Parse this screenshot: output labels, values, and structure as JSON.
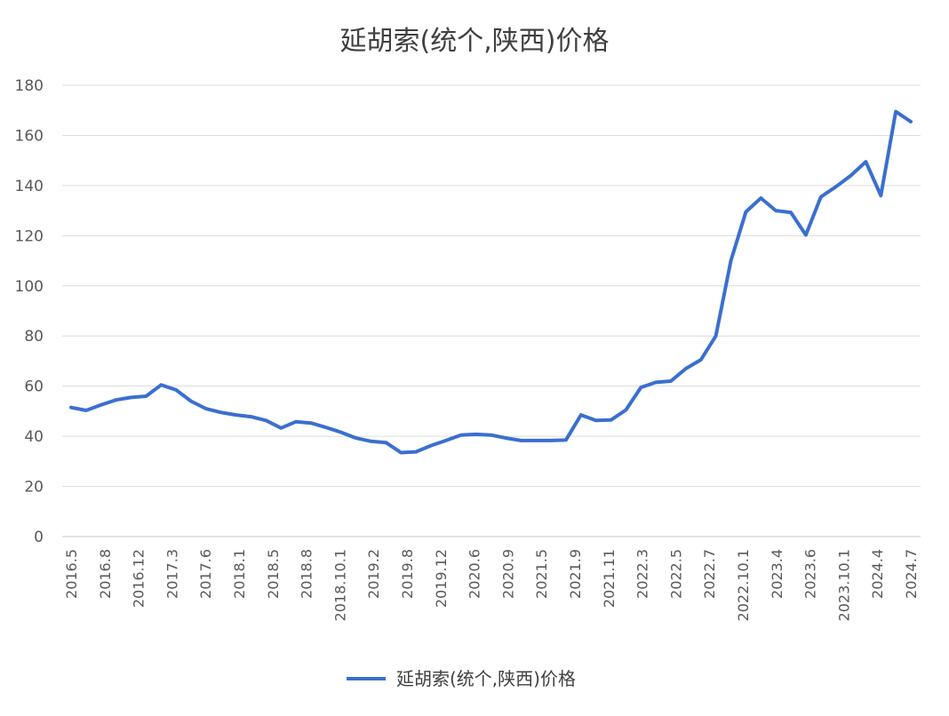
{
  "chart_data": {
    "type": "line",
    "title": "延胡索(统个,陕西)价格",
    "xlabel": "",
    "ylabel": "",
    "ylim": [
      0,
      180
    ],
    "yticks": [
      0,
      20,
      40,
      60,
      80,
      100,
      120,
      140,
      160,
      180
    ],
    "x_tick_labels": [
      "2016.5",
      "2016.8",
      "2016.12",
      "2017.3",
      "2017.6",
      "2018.1",
      "2018.5",
      "2018.8",
      "2018.10.1",
      "2019.2",
      "2019.8",
      "2019.12",
      "2020.6",
      "2020.9",
      "2021.5",
      "2021.9",
      "2021.11",
      "2022.3",
      "2022.5",
      "2022.7",
      "2022.10.1",
      "2023.4",
      "2023.6",
      "2023.10.1",
      "2024.4",
      "2024.7"
    ],
    "grid": "horizontal",
    "legend_position": "bottom",
    "series": [
      {
        "name": "延胡索(统个,陕西)价格",
        "color": "#3a6fd0",
        "values": [
          51.5,
          50.3,
          52.5,
          54.5,
          55.5,
          56,
          60.5,
          58.5,
          54,
          51,
          49.5,
          48.5,
          47.8,
          46.3,
          43.3,
          45.8,
          45.3,
          43.5,
          41.6,
          39.3,
          38,
          37.5,
          33.5,
          33.8,
          36.3,
          38.3,
          40.5,
          40.8,
          40.5,
          39.3,
          38.3,
          38.3,
          38.3,
          38.5,
          48.5,
          46.3,
          46.5,
          50.5,
          59.5,
          61.5,
          62,
          67,
          70.5,
          80,
          110,
          129.5,
          135,
          130,
          129.3,
          120.3,
          135.5,
          139.5,
          144,
          149.5,
          136,
          169.5,
          165.5
        ]
      }
    ]
  },
  "legend": {
    "label": "延胡索(统个,陕西)价格"
  }
}
